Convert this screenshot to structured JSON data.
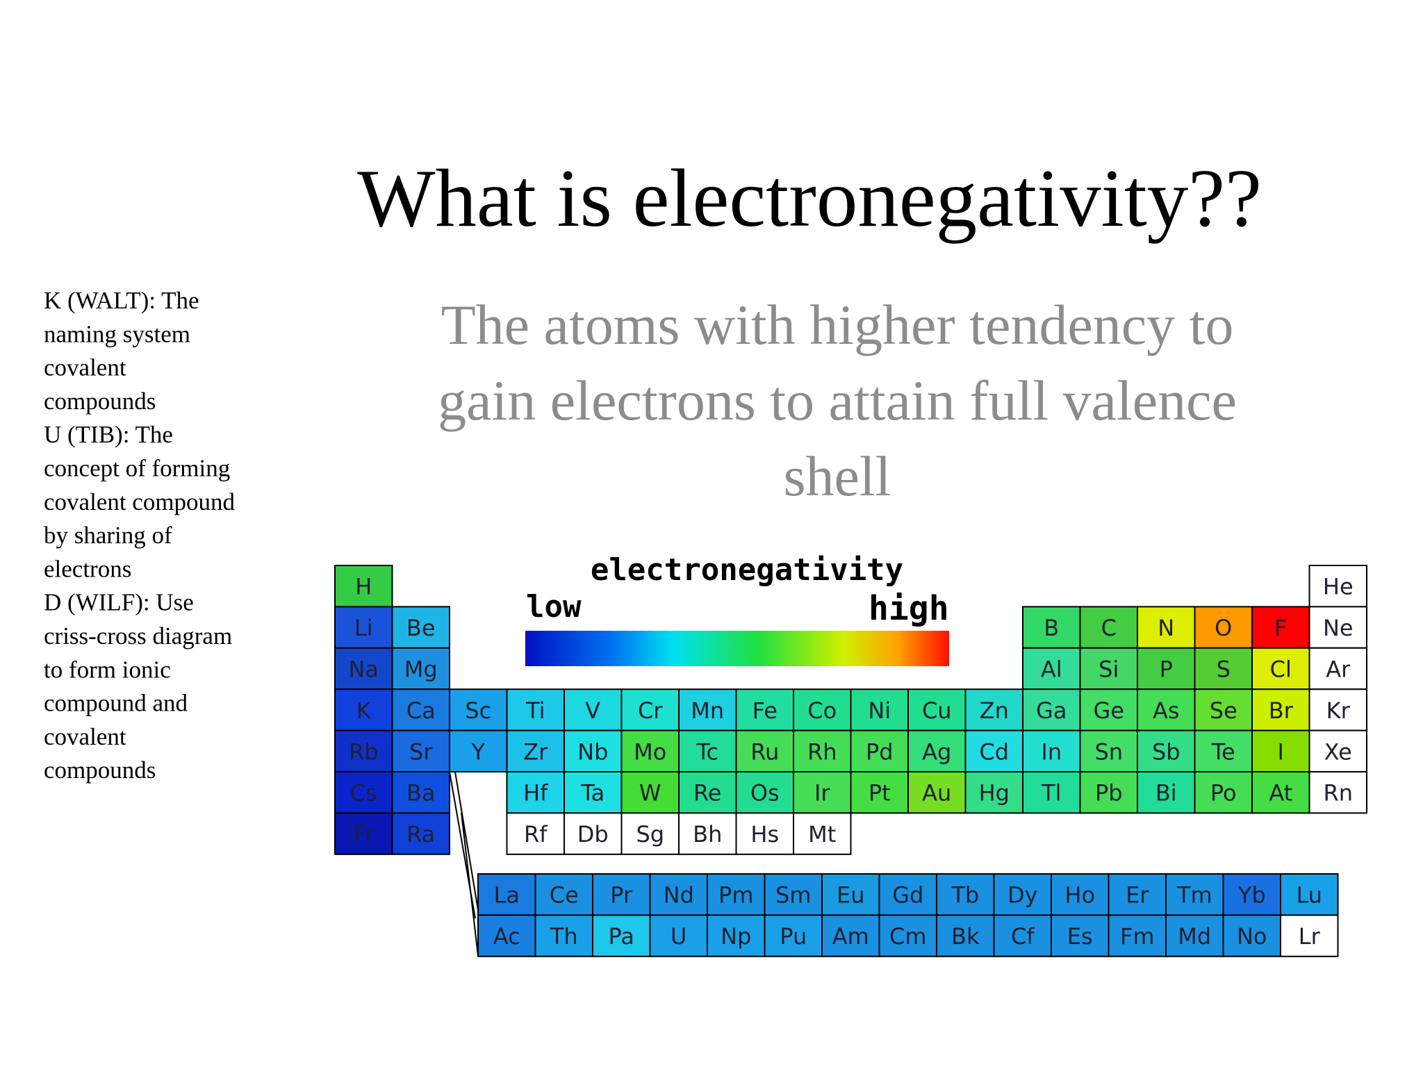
{
  "slide": {
    "title": "What is electronegativity??",
    "subtitle_lines": [
      "The atoms with higher tendency to",
      "gain electrons to attain full valence",
      "shell"
    ],
    "notes": [
      "K (WALT): The",
      "naming system",
      "covalent",
      "compounds",
      "U (TIB): The",
      "concept of forming",
      "covalent compound",
      "by sharing of",
      "electrons",
      "D (WILF): Use",
      "criss-cross diagram",
      "to form ionic",
      "compound and",
      "covalent",
      "compounds"
    ],
    "legend": {
      "title": "electronegativity",
      "low": "low",
      "high": "high"
    },
    "table": {
      "rows": [
        [
          {
            "symbol": "H",
            "color": "#33cc44"
          },
          null,
          null,
          null,
          null,
          null,
          null,
          null,
          null,
          null,
          null,
          null,
          null,
          null,
          null,
          null,
          null,
          {
            "symbol": "He",
            "color": "#ffffff"
          }
        ],
        [
          {
            "symbol": "Li",
            "color": "#1a53d9"
          },
          {
            "symbol": "Be",
            "color": "#1eb4e6"
          },
          null,
          null,
          null,
          null,
          null,
          null,
          null,
          null,
          null,
          null,
          {
            "symbol": "B",
            "color": "#33d966"
          },
          {
            "symbol": "C",
            "color": "#44cc44"
          },
          {
            "symbol": "N",
            "color": "#ddee00"
          },
          {
            "symbol": "O",
            "color": "#ff9900"
          },
          {
            "symbol": "F",
            "color": "#ff0000"
          },
          {
            "symbol": "Ne",
            "color": "#ffffff"
          }
        ],
        [
          {
            "symbol": "Na",
            "color": "#1446cc"
          },
          {
            "symbol": "Mg",
            "color": "#1e90e0"
          },
          null,
          null,
          null,
          null,
          null,
          null,
          null,
          null,
          null,
          null,
          {
            "symbol": "Al",
            "color": "#33dd99"
          },
          {
            "symbol": "Si",
            "color": "#44d666"
          },
          {
            "symbol": "P",
            "color": "#44cc44"
          },
          {
            "symbol": "S",
            "color": "#55cc33"
          },
          {
            "symbol": "Cl",
            "color": "#ddee00"
          },
          {
            "symbol": "Ar",
            "color": "#ffffff"
          }
        ],
        [
          {
            "symbol": "K",
            "color": "#1040dd"
          },
          {
            "symbol": "Ca",
            "color": "#1a7ae0"
          },
          {
            "symbol": "Sc",
            "color": "#1aa0e8"
          },
          {
            "symbol": "Ti",
            "color": "#1ec8e8"
          },
          {
            "symbol": "V",
            "color": "#1ed8e0"
          },
          {
            "symbol": "Cr",
            "color": "#1ee0d0"
          },
          {
            "symbol": "Mn",
            "color": "#1ed0e0"
          },
          {
            "symbol": "Fe",
            "color": "#22dda0"
          },
          {
            "symbol": "Co",
            "color": "#22dd90"
          },
          {
            "symbol": "Ni",
            "color": "#22dd90"
          },
          {
            "symbol": "Cu",
            "color": "#22dd90"
          },
          {
            "symbol": "Zn",
            "color": "#22d8c8"
          },
          {
            "symbol": "Ga",
            "color": "#33dd99"
          },
          {
            "symbol": "Ge",
            "color": "#44dd66"
          },
          {
            "symbol": "As",
            "color": "#44dd55"
          },
          {
            "symbol": "Se",
            "color": "#66dd33"
          },
          {
            "symbol": "Br",
            "color": "#ccee00"
          },
          {
            "symbol": "Kr",
            "color": "#ffffff"
          }
        ],
        [
          {
            "symbol": "Rb",
            "color": "#1030cc"
          },
          {
            "symbol": "Sr",
            "color": "#1a6ae0"
          },
          {
            "symbol": "Y",
            "color": "#1aa0e8"
          },
          {
            "symbol": "Zr",
            "color": "#1ec0e8"
          },
          {
            "symbol": "Nb",
            "color": "#1ee0e0"
          },
          {
            "symbol": "Mo",
            "color": "#44dd44"
          },
          {
            "symbol": "Tc",
            "color": "#22dd99"
          },
          {
            "symbol": "Ru",
            "color": "#44dd55"
          },
          {
            "symbol": "Rh",
            "color": "#44dd55"
          },
          {
            "symbol": "Pd",
            "color": "#44dd55"
          },
          {
            "symbol": "Ag",
            "color": "#33dd77"
          },
          {
            "symbol": "Cd",
            "color": "#22dde0"
          },
          {
            "symbol": "In",
            "color": "#22e0d0"
          },
          {
            "symbol": "Sn",
            "color": "#44dd66"
          },
          {
            "symbol": "Sb",
            "color": "#33dd88"
          },
          {
            "symbol": "Te",
            "color": "#44dd66"
          },
          {
            "symbol": "I",
            "color": "#88dd00"
          },
          {
            "symbol": "Xe",
            "color": "#ffffff"
          }
        ],
        [
          {
            "symbol": "Cs",
            "color": "#0a24cc"
          },
          {
            "symbol": "Ba",
            "color": "#1050e0"
          },
          null,
          {
            "symbol": "Hf",
            "color": "#1ed4e8"
          },
          {
            "symbol": "Ta",
            "color": "#1ee0e0"
          },
          {
            "symbol": "W",
            "color": "#44dd33"
          },
          {
            "symbol": "Re",
            "color": "#22dd90"
          },
          {
            "symbol": "Os",
            "color": "#22dd90"
          },
          {
            "symbol": "Ir",
            "color": "#44dd55"
          },
          {
            "symbol": "Pt",
            "color": "#44dd44"
          },
          {
            "symbol": "Au",
            "color": "#77dd22"
          },
          {
            "symbol": "Hg",
            "color": "#33dd88"
          },
          {
            "symbol": "Tl",
            "color": "#22dd99"
          },
          {
            "symbol": "Pb",
            "color": "#44dd55"
          },
          {
            "symbol": "Bi",
            "color": "#22dd99"
          },
          {
            "symbol": "Po",
            "color": "#44dd55"
          },
          {
            "symbol": "At",
            "color": "#44dd44"
          },
          {
            "symbol": "Rn",
            "color": "#ffffff"
          }
        ],
        [
          {
            "symbol": "Fr",
            "color": "#0818b0"
          },
          {
            "symbol": "Ra",
            "color": "#1040d8"
          },
          null,
          {
            "symbol": "Rf",
            "color": "#ffffff"
          },
          {
            "symbol": "Db",
            "color": "#ffffff"
          },
          {
            "symbol": "Sg",
            "color": "#ffffff"
          },
          {
            "symbol": "Bh",
            "color": "#ffffff"
          },
          {
            "symbol": "Hs",
            "color": "#ffffff"
          },
          {
            "symbol": "Mt",
            "color": "#ffffff"
          },
          null,
          null,
          null,
          null,
          null,
          null,
          null,
          null,
          null
        ]
      ],
      "f_rows": [
        [
          {
            "symbol": "La",
            "color": "#1a7ae0"
          },
          {
            "symbol": "Ce",
            "color": "#1a90e0"
          },
          {
            "symbol": "Pr",
            "color": "#1a90e0"
          },
          {
            "symbol": "Nd",
            "color": "#1a90e0"
          },
          {
            "symbol": "Pm",
            "color": "#1a90e0"
          },
          {
            "symbol": "Sm",
            "color": "#1a90e0"
          },
          {
            "symbol": "Eu",
            "color": "#1a9ae0"
          },
          {
            "symbol": "Gd",
            "color": "#1a90e0"
          },
          {
            "symbol": "Tb",
            "color": "#1a90e0"
          },
          {
            "symbol": "Dy",
            "color": "#1a90e0"
          },
          {
            "symbol": "Ho",
            "color": "#1a90e0"
          },
          {
            "symbol": "Er",
            "color": "#1a90e0"
          },
          {
            "symbol": "Tm",
            "color": "#1a90e0"
          },
          {
            "symbol": "Yb",
            "color": "#1a70e0"
          },
          {
            "symbol": "Lu",
            "color": "#1aa0e8"
          }
        ],
        [
          {
            "symbol": "Ac",
            "color": "#1a80e0"
          },
          {
            "symbol": "Th",
            "color": "#1aa0e8"
          },
          {
            "symbol": "Pa",
            "color": "#1ec8e8"
          },
          {
            "symbol": "U",
            "color": "#1aa0e8"
          },
          {
            "symbol": "Np",
            "color": "#1aa0e8"
          },
          {
            "symbol": "Pu",
            "color": "#1aa0e8"
          },
          {
            "symbol": "Am",
            "color": "#1a90e0"
          },
          {
            "symbol": "Cm",
            "color": "#1a90e0"
          },
          {
            "symbol": "Bk",
            "color": "#1a90e0"
          },
          {
            "symbol": "Cf",
            "color": "#1a90e0"
          },
          {
            "symbol": "Es",
            "color": "#1a90e0"
          },
          {
            "symbol": "Fm",
            "color": "#1a90e0"
          },
          {
            "symbol": "Md",
            "color": "#1a90e0"
          },
          {
            "symbol": "No",
            "color": "#1a90e0"
          },
          {
            "symbol": "Lr",
            "color": "#ffffff"
          }
        ]
      ]
    }
  }
}
